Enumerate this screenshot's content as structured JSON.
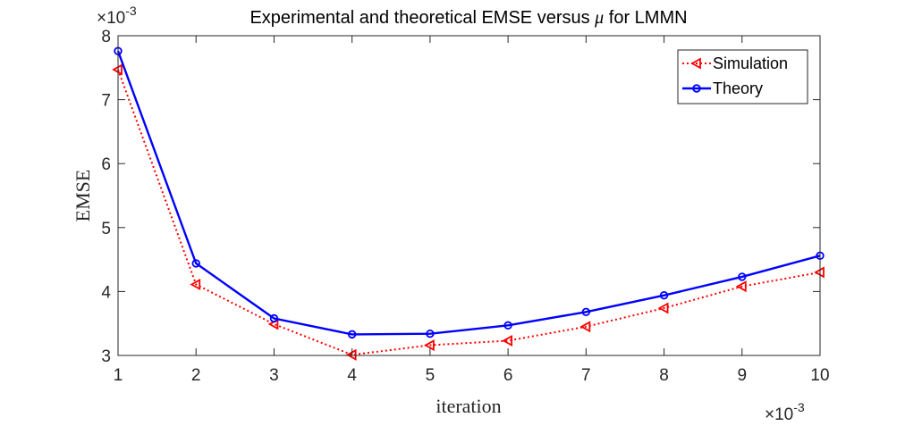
{
  "chart_data": {
    "type": "line",
    "title_prefix": "Experimental and theoretical EMSE versus ",
    "title_symbol": "μ",
    "title_suffix": " for LMMN",
    "xlabel": "iteration",
    "ylabel": "EMSE",
    "x_multiplier": "×10",
    "x_multiplier_exp": "-3",
    "y_multiplier": "×10",
    "y_multiplier_exp": "-3",
    "x": [
      1,
      2,
      3,
      4,
      5,
      6,
      7,
      8,
      9,
      10
    ],
    "xlim": [
      1,
      10
    ],
    "ylim": [
      3,
      8
    ],
    "xticks": [
      1,
      2,
      3,
      4,
      5,
      6,
      7,
      8,
      9,
      10
    ],
    "yticks": [
      3,
      4,
      5,
      6,
      7,
      8
    ],
    "grid": false,
    "legend_position": "top-right",
    "series": [
      {
        "name": "Simulation",
        "color": "#ff0000",
        "line_style": "dotted",
        "marker": "left-triangle",
        "values": [
          7.47,
          4.11,
          3.49,
          3.01,
          3.16,
          3.23,
          3.45,
          3.74,
          4.08,
          4.3
        ]
      },
      {
        "name": "Theory",
        "color": "#0000ff",
        "line_style": "solid",
        "marker": "circle",
        "values": [
          7.76,
          4.44,
          3.58,
          3.33,
          3.34,
          3.47,
          3.68,
          3.94,
          4.23,
          4.56
        ]
      }
    ]
  }
}
